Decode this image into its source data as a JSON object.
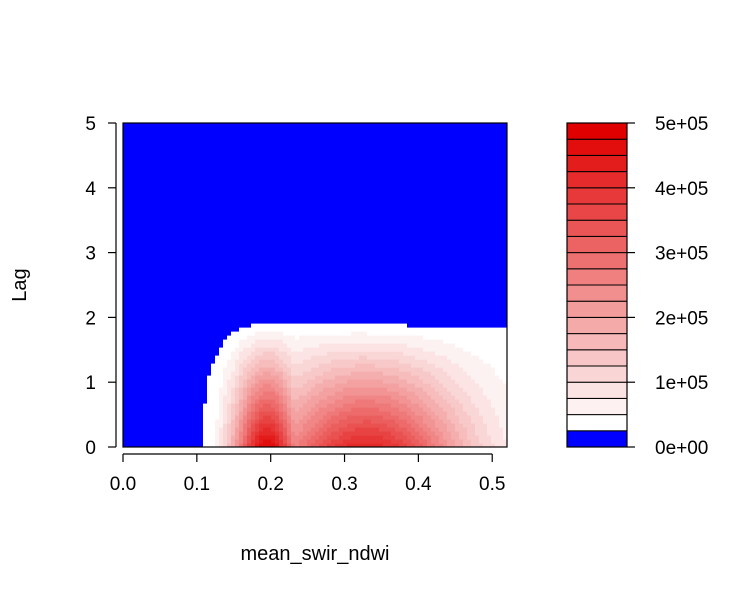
{
  "chart_data": {
    "type": "heatmap",
    "title": "",
    "xlabel": "mean_swir_ndwi",
    "ylabel": "Lag",
    "xlim": [
      0,
      0.52
    ],
    "ylim": [
      0,
      5
    ],
    "x_ticks": [
      "0.0",
      "0.1",
      "0.2",
      "0.3",
      "0.4",
      "0.5"
    ],
    "y_ticks": [
      "0",
      "1",
      "2",
      "3",
      "4",
      "5"
    ],
    "x_tick_values": [
      0,
      0.1,
      0.2,
      0.3,
      0.4,
      0.5
    ],
    "y_tick_values": [
      0,
      1,
      2,
      3,
      4,
      5
    ],
    "surface": {
      "description_values": "contour-filled response surface; zero region shown in blue",
      "zero_boundary": [
        [
          0.107,
          0.0
        ],
        [
          0.11,
          0.5
        ],
        [
          0.113,
          1.0
        ],
        [
          0.125,
          1.4
        ],
        [
          0.14,
          1.7
        ],
        [
          0.16,
          1.85
        ],
        [
          0.19,
          1.92
        ],
        [
          0.25,
          1.91
        ],
        [
          0.3,
          1.9
        ],
        [
          0.4,
          1.88
        ],
        [
          0.52,
          1.83
        ]
      ],
      "peak": {
        "x": 0.195,
        "y": 0.0,
        "value": 480000
      },
      "secondary_ridge": {
        "x": 0.33,
        "y": 0.1,
        "value": 420000
      }
    },
    "colorbar": {
      "min": 0,
      "max": 500000,
      "tick_labels": [
        "0e+00",
        "1e+05",
        "2e+05",
        "3e+05",
        "4e+05",
        "5e+05"
      ],
      "tick_values": [
        0,
        100000,
        200000,
        300000,
        400000,
        500000
      ],
      "levels": 20,
      "low_color": "#ffffff",
      "high_color": "#e00000",
      "zero_color": "#0000ff"
    }
  }
}
